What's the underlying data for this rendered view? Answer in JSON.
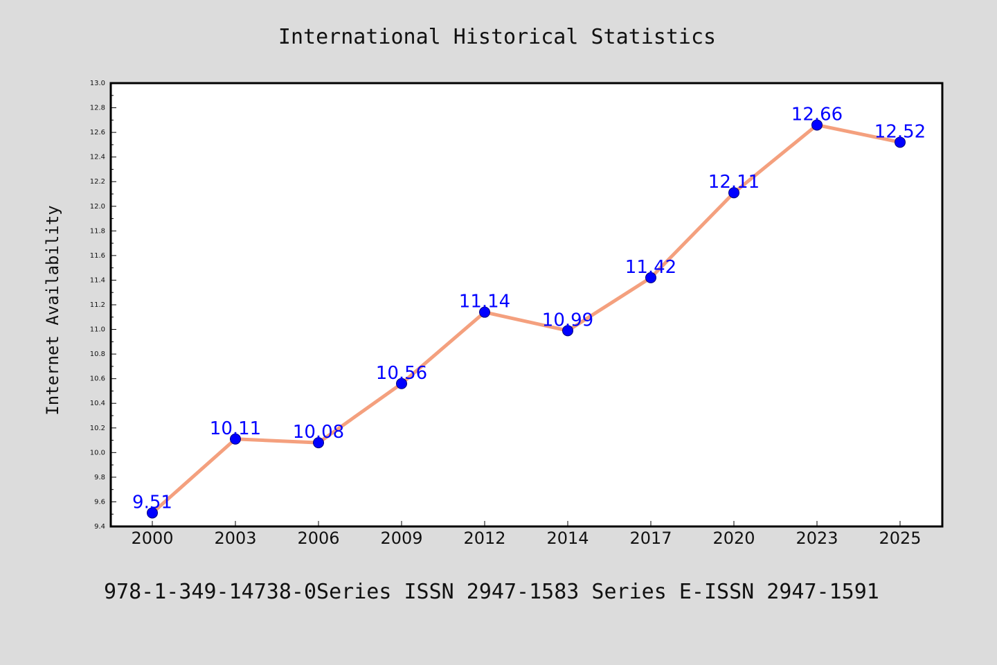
{
  "chart_data": {
    "type": "line",
    "title": "International Historical Statistics",
    "ylabel": "Internet Availability",
    "xlabel": "",
    "categories": [
      "2000",
      "2003",
      "2006",
      "2009",
      "2012",
      "2014",
      "2017",
      "2020",
      "2023",
      "2025"
    ],
    "series": [
      {
        "values": [
          9.51,
          10.11,
          10.08,
          10.56,
          11.14,
          10.99,
          11.42,
          12.11,
          12.66,
          12.52
        ]
      }
    ],
    "data_labels": [
      "9.51",
      "10.11",
      "10.08",
      "10.56",
      "11.14",
      "10.99",
      "11.42",
      "12.11",
      "12.66",
      "12.52"
    ],
    "ylim": [
      9.4,
      13.0
    ],
    "yticks": [
      "9.4",
      "9.6",
      "9.8",
      "10.0",
      "10.2",
      "10.4",
      "10.6",
      "10.8",
      "11.0",
      "11.2",
      "11.4",
      "11.6",
      "11.8",
      "12.0",
      "12.2",
      "12.4",
      "12.6",
      "12.8",
      "13.0"
    ],
    "grid": false,
    "legend": "none",
    "colors": {
      "line": "#f4a07e",
      "marker": "#0000ff",
      "data_label": "#0000ff",
      "background": "#dcdcdc",
      "plot_background": "#ffffff"
    }
  },
  "footer": {
    "text": "978-1-349-14738-0Series ISSN 2947-1583 Series E-ISSN 2947-1591"
  }
}
